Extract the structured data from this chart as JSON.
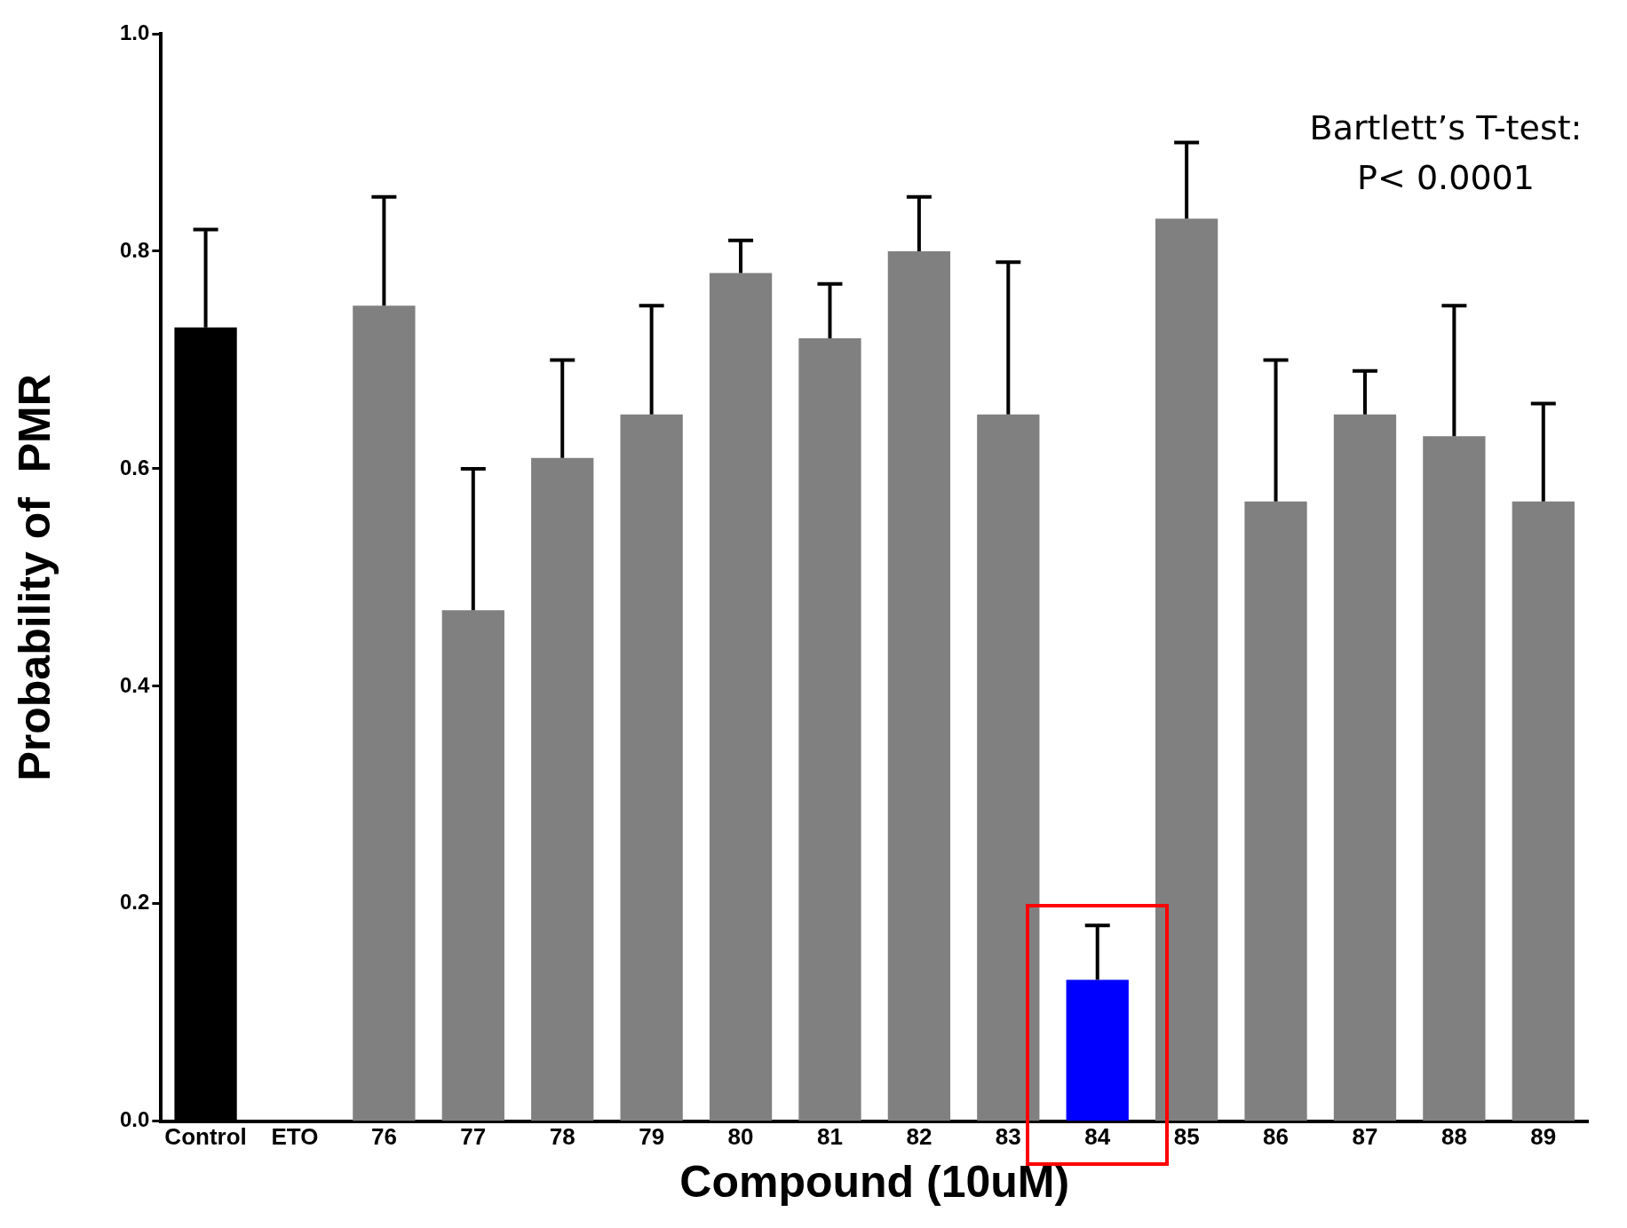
{
  "chart_data": {
    "type": "bar",
    "xlabel": "Compound (10uM)",
    "ylabel": "Probability of  PMR",
    "categories": [
      "Control",
      "ETO",
      "76",
      "77",
      "78",
      "79",
      "80",
      "81",
      "82",
      "83",
      "84",
      "85",
      "86",
      "87",
      "88",
      "89"
    ],
    "values": [
      0.73,
      0,
      0.75,
      0.47,
      0.61,
      0.65,
      0.78,
      0.72,
      0.8,
      0.65,
      0.13,
      0.83,
      0.57,
      0.65,
      0.63,
      0.57
    ],
    "colors": [
      "#000000",
      "#808080",
      "#808080",
      "#808080",
      "#808080",
      "#808080",
      "#808080",
      "#808080",
      "#808080",
      "#808080",
      "#0000ff",
      "#808080",
      "#808080",
      "#808080",
      "#808080",
      "#808080"
    ],
    "errors": [
      [
        0.73,
        0.82
      ],
      null,
      [
        0.75,
        0.85
      ],
      [
        0.47,
        0.6
      ],
      [
        0.61,
        0.7
      ],
      [
        0.65,
        0.75
      ],
      [
        0.78,
        0.81
      ],
      [
        0.72,
        0.77
      ],
      [
        0.8,
        0.85
      ],
      [
        0.65,
        0.79
      ],
      [
        0.13,
        0.18
      ],
      [
        0.83,
        0.9
      ],
      [
        0.57,
        0.7
      ],
      [
        0.65,
        0.69
      ],
      [
        0.63,
        0.75
      ],
      [
        0.57,
        0.66
      ]
    ],
    "ylim": [
      0,
      1
    ],
    "yticks": [
      {
        "value": 0,
        "label": "0.0"
      },
      {
        "value": 0.2,
        "label": "0.2"
      },
      {
        "value": 0.4,
        "label": "0.4"
      },
      {
        "value": 0.6,
        "label": "0.6"
      },
      {
        "value": 0.8,
        "label": "0.8"
      },
      {
        "value": 1,
        "label": "1.0"
      }
    ],
    "annotations": [
      "Bartlett’s T-test:",
      "P< 0.0001"
    ],
    "grid": false,
    "legend": false
  }
}
